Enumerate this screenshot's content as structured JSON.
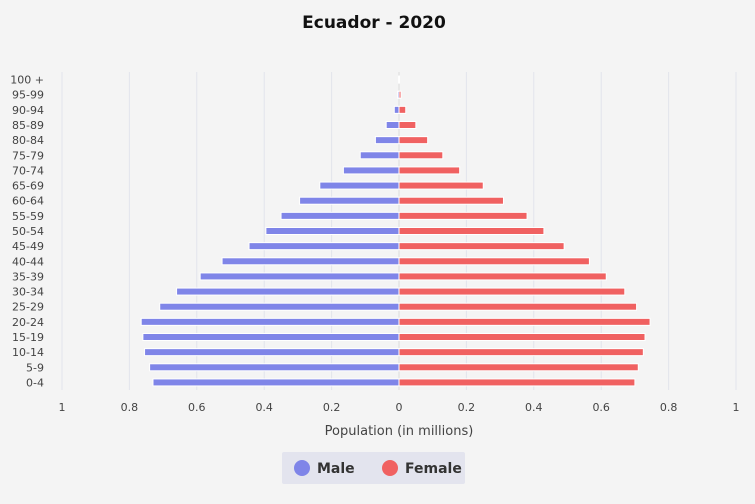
{
  "chart_data": {
    "type": "bar",
    "orientation": "horizontal",
    "title": "Ecuador - 2020",
    "xlabel": "Population (in millions)",
    "ylabel": "",
    "xlim": [
      -1,
      1
    ],
    "x_tick_values": [
      -1,
      -0.8,
      -0.6,
      -0.4,
      -0.2,
      0,
      0.2,
      0.4,
      0.6,
      0.8,
      1
    ],
    "x_tick_labels": [
      "1",
      "0.8",
      "0.6",
      "0.4",
      "0.2",
      "0",
      "0.2",
      "0.4",
      "0.6",
      "0.8",
      "1"
    ],
    "grid": true,
    "legend_position": "bottom",
    "categories": [
      "0-4",
      "5-9",
      "10-14",
      "15-19",
      "20-24",
      "25-29",
      "30-34",
      "35-39",
      "40-44",
      "45-49",
      "50-54",
      "55-59",
      "60-64",
      "65-69",
      "70-74",
      "75-79",
      "80-84",
      "85-89",
      "90-94",
      "95-99",
      "100 +"
    ],
    "series": [
      {
        "name": "Male",
        "color": "#7f85e8",
        "values": [
          0.73,
          0.74,
          0.755,
          0.76,
          0.765,
          0.71,
          0.66,
          0.59,
          0.525,
          0.445,
          0.395,
          0.35,
          0.295,
          0.235,
          0.165,
          0.115,
          0.07,
          0.038,
          0.014,
          0.004,
          0.001
        ]
      },
      {
        "name": "Female",
        "color": "#f06161",
        "values": [
          0.7,
          0.71,
          0.725,
          0.73,
          0.745,
          0.705,
          0.67,
          0.615,
          0.565,
          0.49,
          0.43,
          0.38,
          0.31,
          0.25,
          0.18,
          0.13,
          0.085,
          0.05,
          0.02,
          0.006,
          0.001
        ]
      }
    ]
  }
}
